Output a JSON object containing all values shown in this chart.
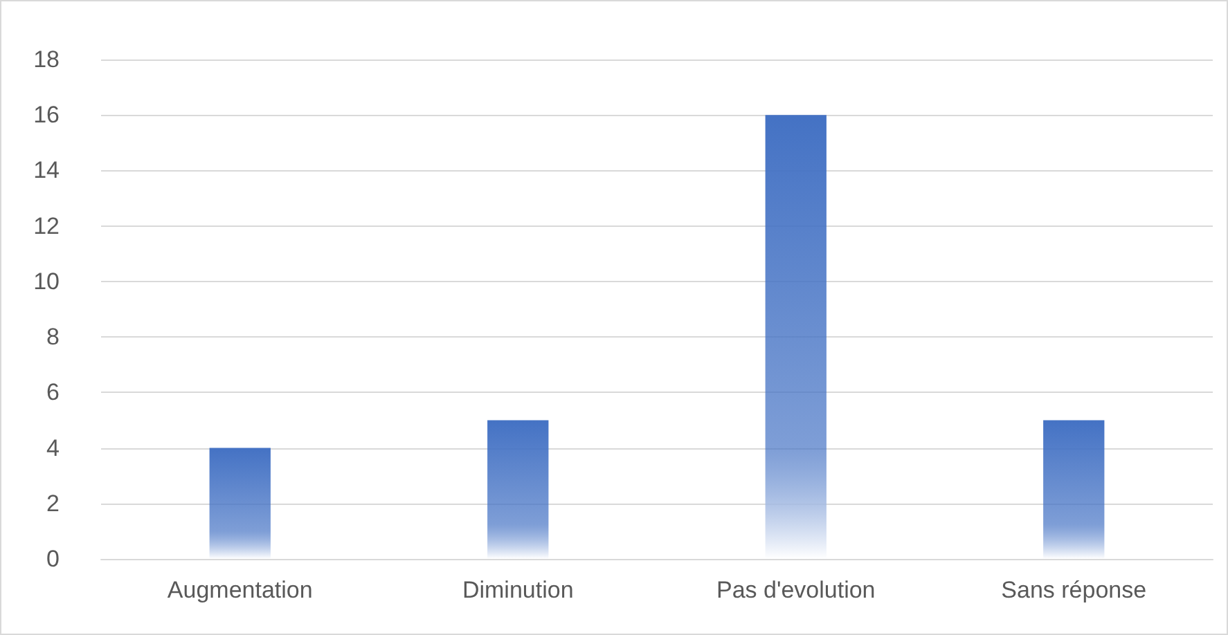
{
  "chart_data": {
    "type": "bar",
    "categories": [
      "Augmentation",
      "Diminution",
      "Pas d'evolution",
      "Sans réponse"
    ],
    "values": [
      4,
      5,
      16,
      5
    ],
    "color": "#4472c4",
    "ylim": [
      0,
      18
    ],
    "yticks": [
      0,
      2,
      4,
      6,
      8,
      10,
      12,
      14,
      16,
      18
    ],
    "grid": "y"
  }
}
